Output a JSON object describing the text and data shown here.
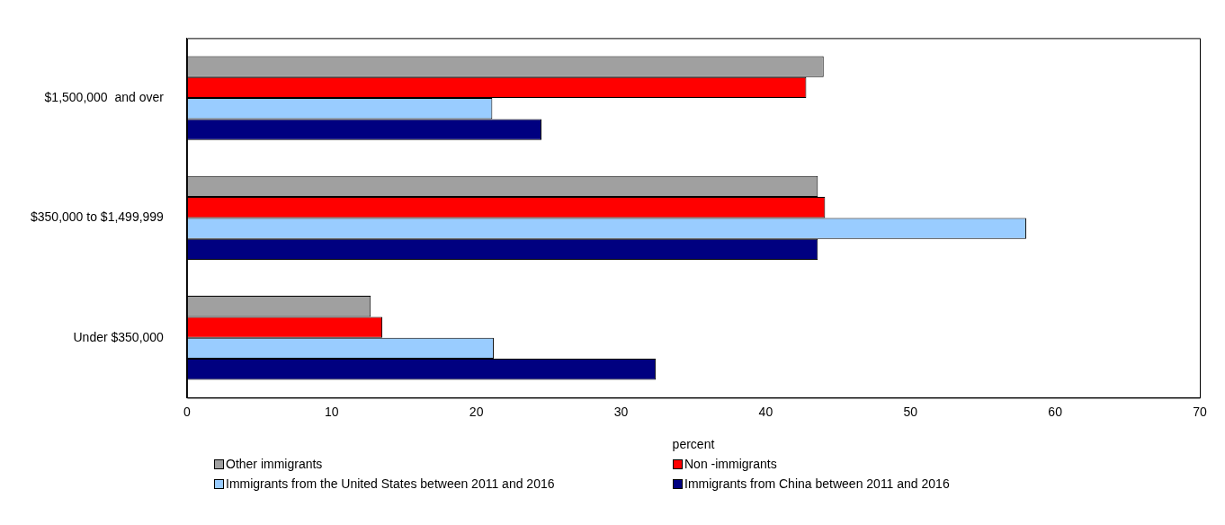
{
  "chart_data": {
    "type": "bar",
    "orientation": "horizontal",
    "xlabel": "percent",
    "categories": [
      "$1,500,000  and over",
      "$350,000 to $1,499,999",
      "Under $350,000"
    ],
    "series": [
      {
        "name": "Other immigrants",
        "color": "#a0a0a0",
        "values": [
          44.0,
          43.6,
          12.7
        ]
      },
      {
        "name": "Non -immigrants",
        "color": "#ff0000",
        "values": [
          42.8,
          44.1,
          13.5
        ]
      },
      {
        "name": "Immigrants from the United States between 2011 and 2016",
        "color": "#99ccff",
        "values": [
          21.1,
          58.0,
          21.2
        ]
      },
      {
        "name": "Immigrants from China between 2011 and 2016",
        "color": "#000080",
        "values": [
          24.5,
          43.6,
          32.4
        ]
      }
    ],
    "xlim": [
      0,
      70
    ],
    "xticks": [
      0,
      10,
      20,
      30,
      40,
      50,
      60,
      70
    ],
    "grid": false,
    "legend": "bottom"
  }
}
